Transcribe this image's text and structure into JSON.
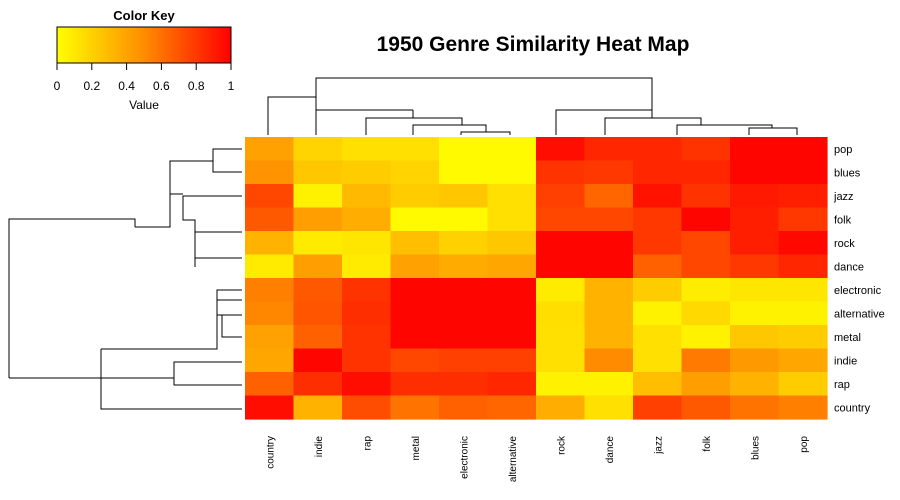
{
  "chart_data": {
    "type": "heatmap",
    "title": "1950 Genre Similarity Heat Map",
    "color_key": {
      "title": "Color Key",
      "axis_label": "Value",
      "ticks": [
        "0",
        "0.2",
        "0.4",
        "0.6",
        "0.8",
        "1"
      ],
      "range": [
        0,
        1
      ],
      "colors": [
        "#ffff00",
        "#ff0000"
      ]
    },
    "rows": [
      "pop",
      "blues",
      "jazz",
      "folk",
      "rock",
      "dance",
      "electronic",
      "alternative",
      "metal",
      "indie",
      "rap",
      "country"
    ],
    "columns": [
      "country",
      "indie",
      "rap",
      "metal",
      "electronic",
      "alternative",
      "rock",
      "dance",
      "jazz",
      "folk",
      "blues",
      "pop"
    ],
    "values": [
      [
        0.37,
        0.17,
        0.12,
        0.12,
        0.02,
        0.02,
        0.95,
        0.85,
        0.85,
        0.8,
        0.98,
        0.98
      ],
      [
        0.42,
        0.22,
        0.2,
        0.17,
        0.02,
        0.02,
        0.8,
        0.78,
        0.85,
        0.85,
        0.98,
        0.98
      ],
      [
        0.72,
        0.05,
        0.27,
        0.2,
        0.22,
        0.12,
        0.75,
        0.6,
        0.93,
        0.8,
        0.9,
        0.88
      ],
      [
        0.65,
        0.38,
        0.32,
        0.02,
        0.02,
        0.12,
        0.72,
        0.72,
        0.78,
        0.98,
        0.88,
        0.78
      ],
      [
        0.3,
        0.08,
        0.1,
        0.25,
        0.18,
        0.22,
        0.98,
        0.98,
        0.78,
        0.72,
        0.88,
        0.97
      ],
      [
        0.08,
        0.38,
        0.08,
        0.37,
        0.33,
        0.35,
        0.98,
        0.98,
        0.62,
        0.72,
        0.78,
        0.85
      ],
      [
        0.5,
        0.65,
        0.8,
        0.98,
        0.98,
        0.98,
        0.08,
        0.3,
        0.2,
        0.07,
        0.1,
        0.1
      ],
      [
        0.47,
        0.67,
        0.82,
        0.98,
        0.98,
        0.98,
        0.13,
        0.3,
        0.05,
        0.15,
        0.05,
        0.05
      ],
      [
        0.37,
        0.62,
        0.8,
        0.98,
        0.98,
        0.98,
        0.12,
        0.3,
        0.12,
        0.05,
        0.22,
        0.2
      ],
      [
        0.35,
        0.98,
        0.8,
        0.72,
        0.75,
        0.75,
        0.12,
        0.45,
        0.12,
        0.52,
        0.4,
        0.35
      ],
      [
        0.62,
        0.82,
        0.95,
        0.82,
        0.82,
        0.85,
        0.05,
        0.05,
        0.25,
        0.38,
        0.3,
        0.2
      ],
      [
        0.95,
        0.3,
        0.7,
        0.55,
        0.62,
        0.6,
        0.32,
        0.12,
        0.75,
        0.65,
        0.55,
        0.5
      ]
    ],
    "row_dendrogram": true,
    "column_dendrogram": true,
    "legend_placement": "top-left"
  }
}
